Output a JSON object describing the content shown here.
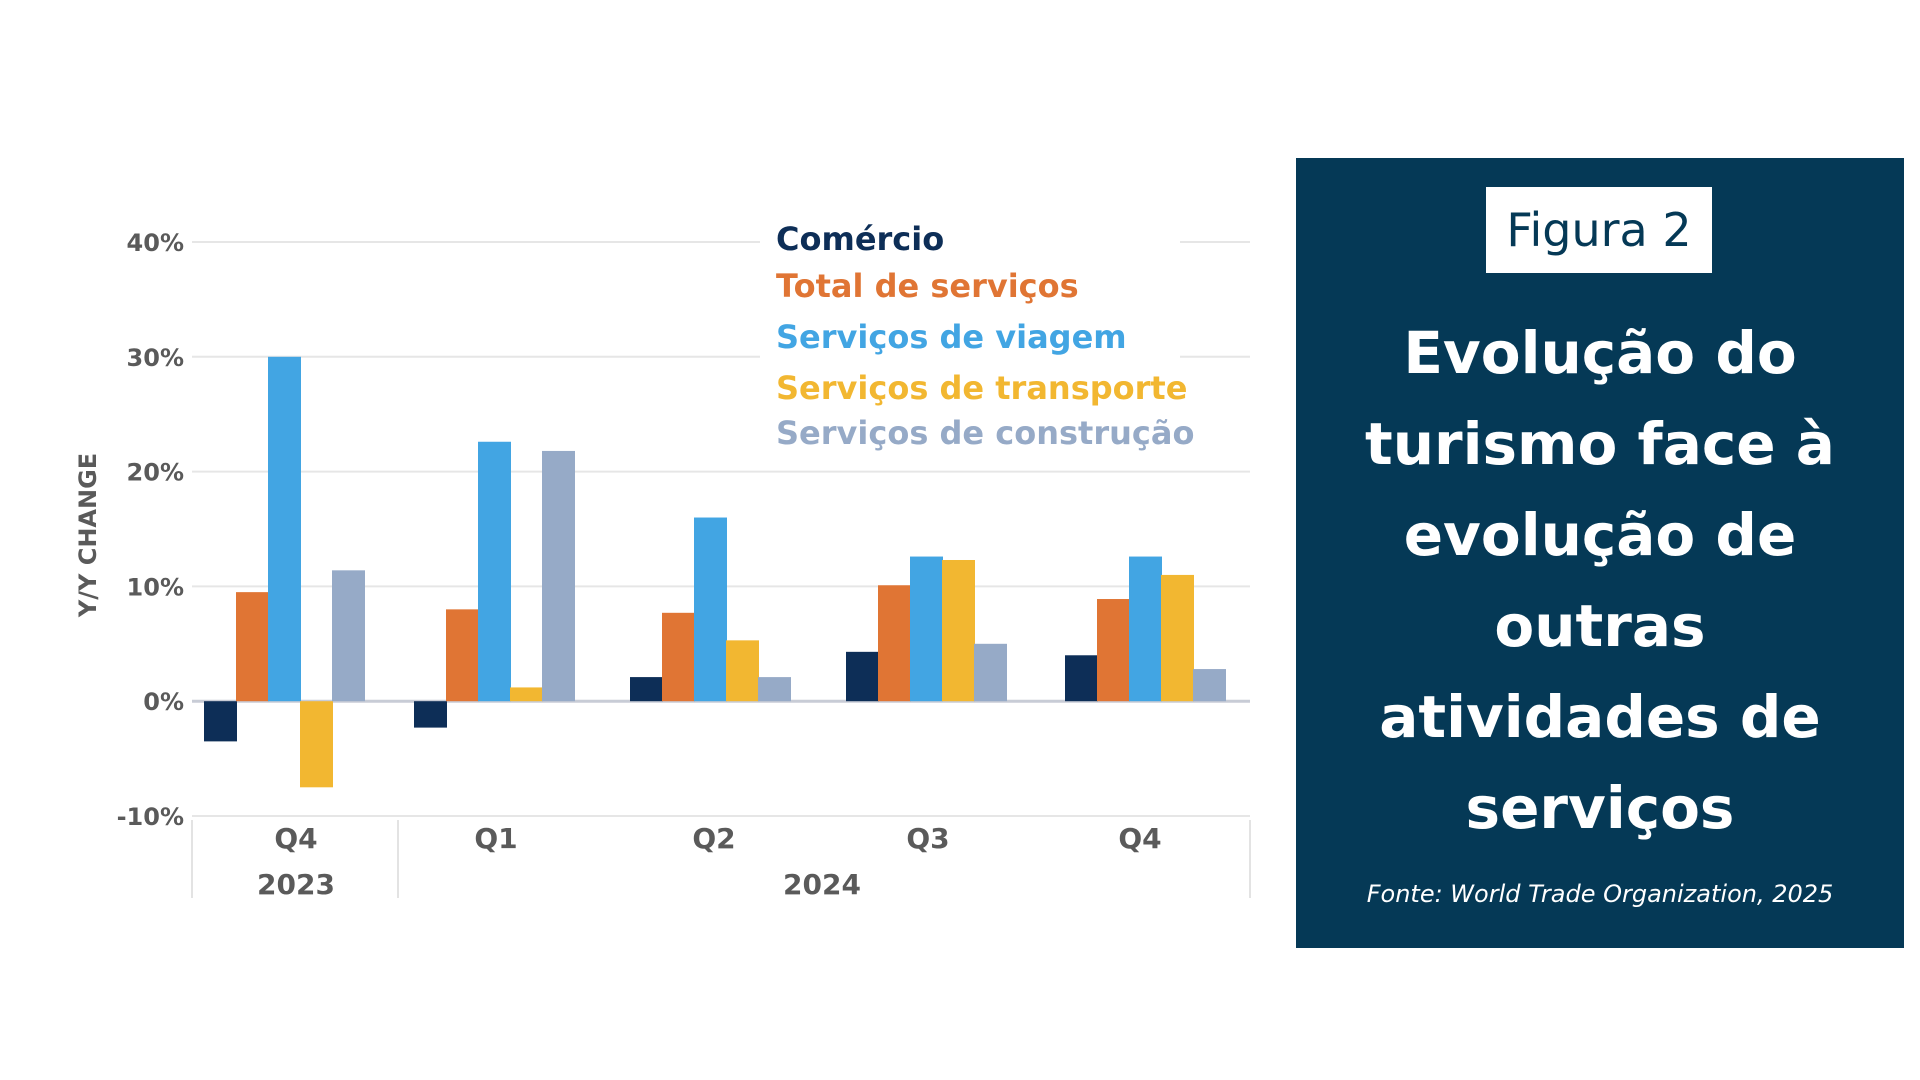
{
  "chart_data": {
    "type": "bar",
    "ylabel": "Y/Y CHANGE",
    "ylim": [
      -10,
      40
    ],
    "yticks": [
      "40%",
      "30%",
      "20%",
      "10%",
      "0%",
      "-10%"
    ],
    "ytick_values": [
      40,
      30,
      20,
      10,
      0,
      -10
    ],
    "categories": [
      "Q4",
      "Q1",
      "Q2",
      "Q3",
      "Q4"
    ],
    "year_labels": [
      "2023",
      "2024"
    ],
    "grid": true,
    "legend_position": "top-right",
    "series": [
      {
        "name": "Comércio",
        "color": "#0d2e57",
        "values": [
          -3.5,
          -2.3,
          2.1,
          4.3,
          4.0
        ]
      },
      {
        "name": "Total de serviços",
        "color": "#e07534",
        "values": [
          9.5,
          8.0,
          7.7,
          10.1,
          8.9
        ]
      },
      {
        "name": "Serviços de viagem",
        "color": "#42a5e3",
        "values": [
          30.0,
          22.6,
          16.0,
          12.6,
          12.6
        ]
      },
      {
        "name": "Serviços de transporte",
        "color": "#f2b731",
        "values": [
          -7.5,
          1.2,
          5.3,
          12.3,
          11.0
        ]
      },
      {
        "name": "Serviços de construção",
        "color": "#96aac7",
        "values": [
          11.4,
          21.8,
          2.1,
          5.0,
          2.8
        ]
      }
    ]
  },
  "panel": {
    "figure_label": "Figura 2",
    "title": "Evolução do turismo face à evolução de outras atividades de serviços",
    "source": "Fonte: World Trade Organization, 2025"
  }
}
